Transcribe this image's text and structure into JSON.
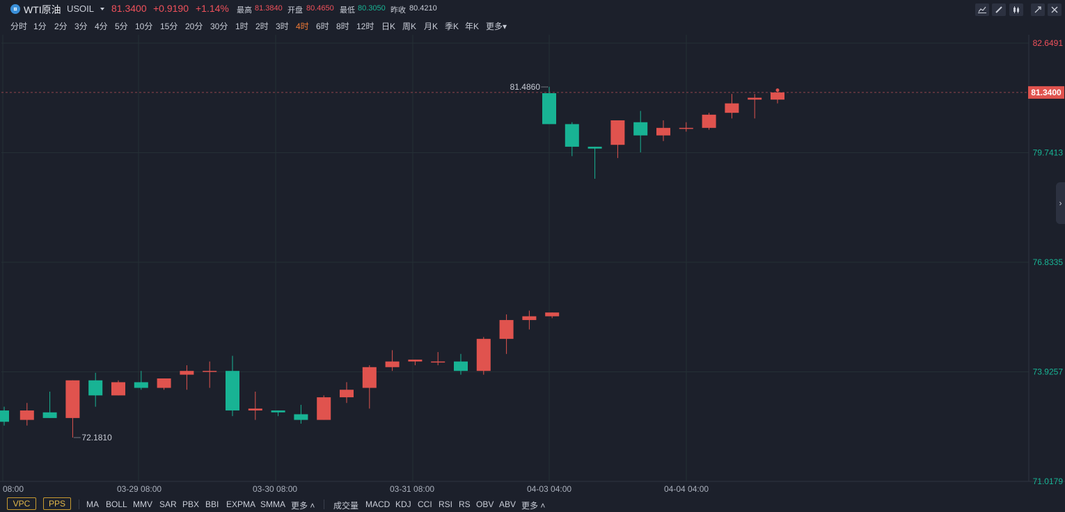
{
  "header": {
    "symbol_icon": "coin-icon",
    "symbol_name": "WTI原油",
    "symbol_code": "USOIL",
    "price": "81.3400",
    "change": "+0.9190",
    "change_pct": "+1.14%",
    "stats": [
      {
        "label": "最高",
        "value": "81.3840",
        "color": "#f0515b"
      },
      {
        "label": "开盘",
        "value": "80.4650",
        "color": "#f0515b"
      },
      {
        "label": "最低",
        "value": "80.3050",
        "color": "#18b394"
      },
      {
        "label": "昨收",
        "value": "80.4210",
        "color": "#c8ccd6"
      }
    ],
    "toolbar_icons": [
      "line-chart-icon",
      "draw-icon",
      "candlestick-icon",
      "collapse-icon",
      "close-icon"
    ]
  },
  "periods": {
    "items": [
      "分时",
      "1分",
      "2分",
      "3分",
      "4分",
      "5分",
      "10分",
      "15分",
      "20分",
      "30分",
      "1时",
      "2时",
      "3时",
      "4时",
      "6时",
      "8时",
      "12时",
      "日K",
      "周K",
      "月K",
      "季K",
      "年K",
      "更多"
    ],
    "active": "4时"
  },
  "colors": {
    "up": "#e0534e",
    "down": "#18b394",
    "bg": "#1c202b",
    "grid": "#252f36",
    "accent": "#f07a36"
  },
  "chart_data": {
    "type": "candlestick",
    "y_ticks": [
      "82.6491",
      "81.3400",
      "79.7413",
      "76.8335",
      "73.9257",
      "71.0179"
    ],
    "ylim": [
      71.0179,
      82.6491
    ],
    "x_ticks": [
      "08:00",
      "03-29 08:00",
      "03-30 08:00",
      "03-31 08:00",
      "04-03 04:00",
      "04-04 04:00"
    ],
    "last_price_label": "81.3400",
    "high_marker": "81.4860",
    "low_marker": "72.1810",
    "candles": [
      {
        "o": 72.9,
        "h": 73.0,
        "l": 72.5,
        "c": 72.6
      },
      {
        "o": 72.65,
        "h": 73.1,
        "l": 72.5,
        "c": 72.9
      },
      {
        "o": 72.85,
        "h": 73.4,
        "l": 72.7,
        "c": 72.7
      },
      {
        "o": 72.7,
        "h": 73.7,
        "l": 72.18,
        "c": 73.7
      },
      {
        "o": 73.7,
        "h": 73.9,
        "l": 73.0,
        "c": 73.3
      },
      {
        "o": 73.3,
        "h": 73.7,
        "l": 73.3,
        "c": 73.65
      },
      {
        "o": 73.65,
        "h": 73.95,
        "l": 73.45,
        "c": 73.5
      },
      {
        "o": 73.5,
        "h": 73.75,
        "l": 73.45,
        "c": 73.75
      },
      {
        "o": 73.85,
        "h": 74.1,
        "l": 73.45,
        "c": 73.95
      },
      {
        "o": 73.95,
        "h": 74.2,
        "l": 73.5,
        "c": 73.95
      },
      {
        "o": 73.95,
        "h": 74.35,
        "l": 72.75,
        "c": 72.9
      },
      {
        "o": 72.9,
        "h": 73.4,
        "l": 72.65,
        "c": 72.95
      },
      {
        "o": 72.9,
        "h": 72.9,
        "l": 72.75,
        "c": 72.85
      },
      {
        "o": 72.8,
        "h": 73.05,
        "l": 72.55,
        "c": 72.65
      },
      {
        "o": 72.65,
        "h": 73.3,
        "l": 72.65,
        "c": 73.25
      },
      {
        "o": 73.25,
        "h": 73.65,
        "l": 73.1,
        "c": 73.45
      },
      {
        "o": 73.5,
        "h": 74.1,
        "l": 72.95,
        "c": 74.05
      },
      {
        "o": 74.05,
        "h": 74.5,
        "l": 73.95,
        "c": 74.2
      },
      {
        "o": 74.2,
        "h": 74.25,
        "l": 74.1,
        "c": 74.25
      },
      {
        "o": 74.2,
        "h": 74.45,
        "l": 74.1,
        "c": 74.2
      },
      {
        "o": 74.2,
        "h": 74.4,
        "l": 73.85,
        "c": 73.95
      },
      {
        "o": 73.95,
        "h": 74.85,
        "l": 73.85,
        "c": 74.8
      },
      {
        "o": 74.8,
        "h": 75.45,
        "l": 74.4,
        "c": 75.3
      },
      {
        "o": 75.3,
        "h": 75.55,
        "l": 75.05,
        "c": 75.4
      },
      {
        "o": 75.4,
        "h": 75.5,
        "l": 75.35,
        "c": 75.5
      },
      {
        "o": 81.32,
        "h": 81.49,
        "l": 80.5,
        "c": 80.5
      },
      {
        "o": 80.5,
        "h": 80.55,
        "l": 79.65,
        "c": 79.9
      },
      {
        "o": 79.9,
        "h": 79.9,
        "l": 79.05,
        "c": 79.85
      },
      {
        "o": 79.95,
        "h": 80.6,
        "l": 79.6,
        "c": 80.6
      },
      {
        "o": 80.55,
        "h": 80.85,
        "l": 79.75,
        "c": 80.2
      },
      {
        "o": 80.2,
        "h": 80.6,
        "l": 80.05,
        "c": 80.4
      },
      {
        "o": 80.4,
        "h": 80.55,
        "l": 80.3,
        "c": 80.4
      },
      {
        "o": 80.4,
        "h": 80.8,
        "l": 80.35,
        "c": 80.75
      },
      {
        "o": 80.8,
        "h": 81.3,
        "l": 80.65,
        "c": 81.05
      },
      {
        "o": 81.15,
        "h": 81.3,
        "l": 80.65,
        "c": 81.2
      },
      {
        "o": 81.15,
        "h": 81.4,
        "l": 81.05,
        "c": 81.34
      }
    ]
  },
  "indicators_main": [
    "MA",
    "BOLL",
    "MMV",
    "SAR",
    "PBX",
    "BBI",
    "EXPMA",
    "SMMA",
    "更多"
  ],
  "indicators_sub": [
    "成交量",
    "MACD",
    "KDJ",
    "CCI",
    "RSI",
    "RS",
    "OBV",
    "ABV",
    "更多"
  ],
  "indicators_boxed": [
    "VPC",
    "PPS"
  ]
}
